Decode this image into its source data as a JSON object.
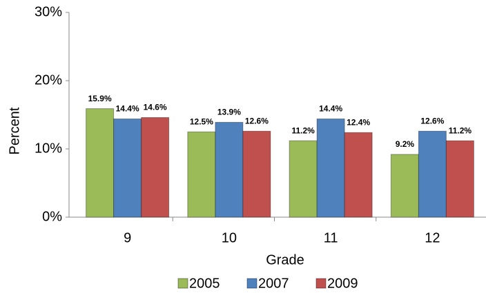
{
  "chart_data": {
    "type": "bar",
    "categories": [
      "9",
      "10",
      "11",
      "12"
    ],
    "series": [
      {
        "name": "2005",
        "color": "#9bbb59",
        "values": [
          15.9,
          12.5,
          11.2,
          9.2
        ],
        "value_labels": [
          "15.9%",
          "12.5%",
          "11.2%",
          "9.2%"
        ]
      },
      {
        "name": "2007",
        "color": "#4f81bd",
        "values": [
          14.4,
          13.9,
          14.4,
          12.6
        ],
        "value_labels": [
          "14.4%",
          "13.9%",
          "14.4%",
          "12.6%"
        ]
      },
      {
        "name": "2009",
        "color": "#c0504d",
        "values": [
          14.6,
          12.6,
          12.4,
          11.2
        ],
        "value_labels": [
          "14.6%",
          "12.6%",
          "12.4%",
          "11.2%"
        ]
      }
    ],
    "x_label": "Grade",
    "y_label": "Percent",
    "ylim": [
      0,
      30
    ],
    "yticks": [
      {
        "value": 0,
        "label": "0%"
      },
      {
        "value": 10,
        "label": "10%"
      },
      {
        "value": 20,
        "label": "20%"
      },
      {
        "value": 30,
        "label": "30%"
      }
    ],
    "grid": false,
    "legend": "bottom"
  }
}
